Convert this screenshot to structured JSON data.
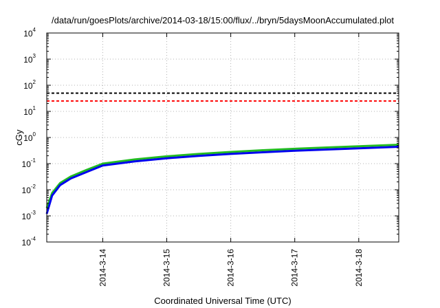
{
  "chart_data": {
    "type": "line",
    "title": "/data/run/goesPlots/archive/2014-03-18/15:00/flux/../bryn/5daysMoonAccumulated.plot",
    "xlabel": "Coordinated Universal Time (UTC)",
    "ylabel": "cGy",
    "yscale": "log",
    "ylim": [
      0.0001,
      10000
    ],
    "xlim": [
      "2014-03-13T03:00",
      "2014-03-18T15:00"
    ],
    "grid": true,
    "y_ticks": [
      {
        "base": "10",
        "exp": "-4",
        "value": 0.0001
      },
      {
        "base": "10",
        "exp": "-3",
        "value": 0.001
      },
      {
        "base": "10",
        "exp": "-2",
        "value": 0.01
      },
      {
        "base": "10",
        "exp": "-1",
        "value": 0.1
      },
      {
        "base": "10",
        "exp": "0",
        "value": 1
      },
      {
        "base": "10",
        "exp": "1",
        "value": 10
      },
      {
        "base": "10",
        "exp": "2",
        "value": 100
      },
      {
        "base": "10",
        "exp": "3",
        "value": 1000
      },
      {
        "base": "10",
        "exp": "4",
        "value": 10000
      }
    ],
    "x_ticks": [
      {
        "label": "2014-3-14",
        "value": "2014-03-14T00:00"
      },
      {
        "label": "2014-3-15",
        "value": "2014-03-15T00:00"
      },
      {
        "label": "2014-3-16",
        "value": "2014-03-16T00:00"
      },
      {
        "label": "2014-3-17",
        "value": "2014-03-17T00:00"
      },
      {
        "label": "2014-3-18",
        "value": "2014-03-18T00:00"
      }
    ],
    "hlines": [
      {
        "value": 50,
        "color": "#000000",
        "style": "dashed"
      },
      {
        "value": 25,
        "color": "#ff0000",
        "style": "dashed"
      }
    ],
    "series": [
      {
        "color": "#22bb22",
        "x": [
          "2014-03-13T03:00",
          "2014-03-13T05:00",
          "2014-03-13T08:00",
          "2014-03-13T12:00",
          "2014-03-13T18:00",
          "2014-03-14T00:00",
          "2014-03-14T12:00",
          "2014-03-15T00:00",
          "2014-03-15T12:00",
          "2014-03-16T00:00",
          "2014-03-16T12:00",
          "2014-03-17T00:00",
          "2014-03-17T12:00",
          "2014-03-18T00:00",
          "2014-03-18T15:00"
        ],
        "y": [
          0.002,
          0.0075,
          0.018,
          0.032,
          0.058,
          0.1,
          0.145,
          0.19,
          0.235,
          0.28,
          0.325,
          0.37,
          0.415,
          0.46,
          0.53
        ]
      },
      {
        "color": "#0000ee",
        "x": [
          "2014-03-13T03:00",
          "2014-03-13T05:00",
          "2014-03-13T08:00",
          "2014-03-13T12:00",
          "2014-03-13T18:00",
          "2014-03-14T00:00",
          "2014-03-14T12:00",
          "2014-03-15T00:00",
          "2014-03-15T12:00",
          "2014-03-16T00:00",
          "2014-03-16T12:00",
          "2014-03-17T00:00",
          "2014-03-17T12:00",
          "2014-03-18T00:00",
          "2014-03-18T15:00"
        ],
        "y": [
          0.0012,
          0.006,
          0.015,
          0.027,
          0.048,
          0.085,
          0.122,
          0.16,
          0.198,
          0.235,
          0.272,
          0.31,
          0.347,
          0.385,
          0.44
        ]
      }
    ]
  }
}
